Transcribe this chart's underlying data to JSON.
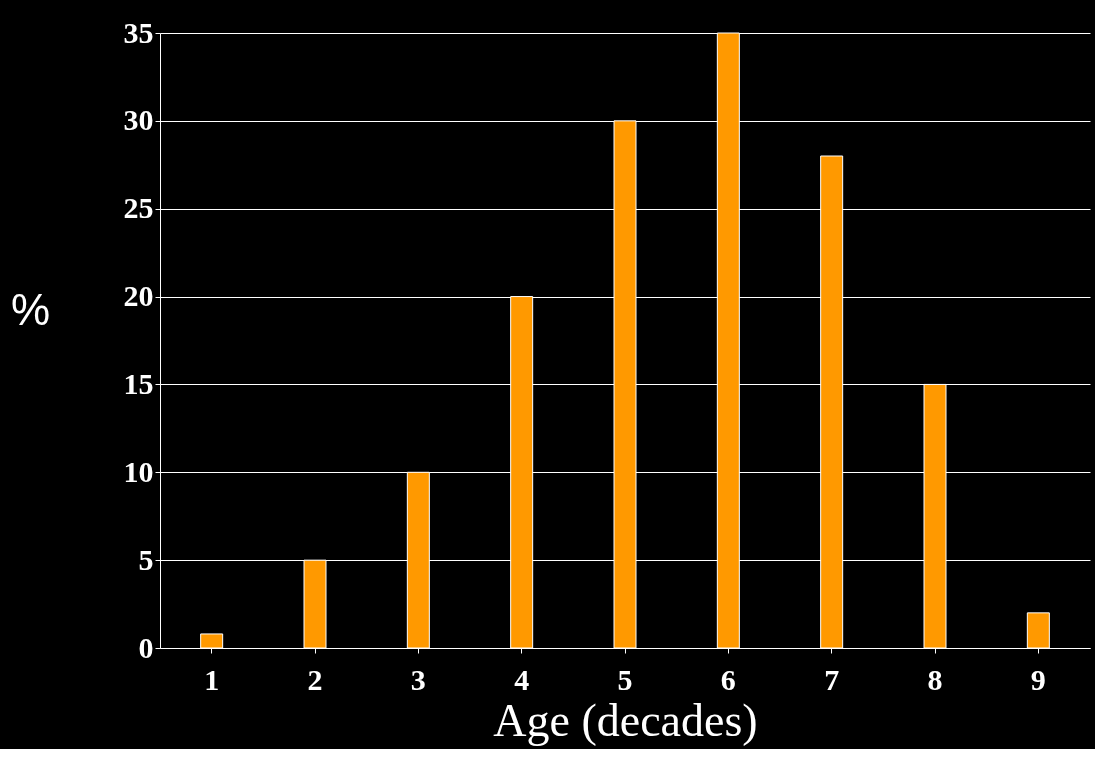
{
  "chart_data": {
    "type": "bar",
    "categories": [
      "1",
      "2",
      "3",
      "4",
      "5",
      "6",
      "7",
      "8",
      "9"
    ],
    "values": [
      0.8,
      5,
      10,
      20,
      30,
      35,
      28,
      15,
      2
    ],
    "color": "#ff9900",
    "xlabel": "Age (decades)",
    "ylabel": "%",
    "ylim": [
      0,
      35
    ],
    "yticks": [
      0,
      5,
      10,
      15,
      20,
      25,
      30,
      35
    ],
    "grid": "y"
  }
}
